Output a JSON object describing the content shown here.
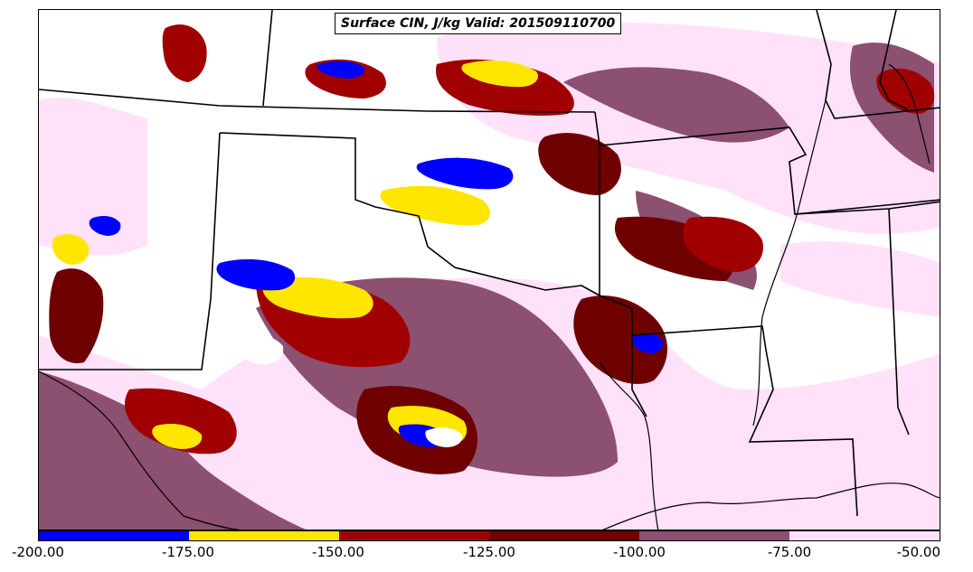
{
  "title": "Surface CIN, J/kg Valid: 201509110700",
  "colorbar": {
    "colors": [
      "#0000ff",
      "#ffe600",
      "#a00000",
      "#6e0000",
      "#8c5070",
      "#ffe1fa"
    ],
    "ticks": [
      "-200.00",
      "-175.00",
      "-150.00",
      "-125.00",
      "-100.00",
      "-75.00",
      "-50.00"
    ]
  },
  "palette": {
    "white": "#ffffff",
    "pale_pink": "#ffe1fa",
    "mauve": "#8c5070",
    "dark_maroon": "#6e0000",
    "red": "#a00000",
    "yellow": "#ffe600",
    "blue": "#0000ff",
    "border": "#000000"
  }
}
